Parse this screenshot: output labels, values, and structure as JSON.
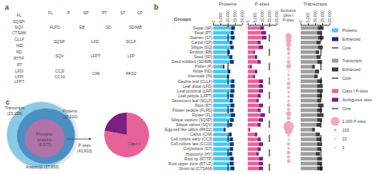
{
  "chart_data": [
    {
      "type": "diagram",
      "title": "a",
      "annotations": [
        [
          "FL",
          "SQSP/\nSQV",
          "CTSAM",
          "CLLF",
          "IND",
          "ND",
          "RTTP",
          "RT",
          "LFD/\nLFP/\nLFPT"
        ],
        [
          "FL",
          "P",
          "SP",
          "PT",
          "ST",
          "CP"
        ],
        [
          "FLPD",
          "EB",
          "SD",
          "SDIMB"
        ],
        [
          "SQSP",
          "LFD",
          "SCLF"
        ],
        [
          "SQV",
          "LFPT",
          "LFP"
        ],
        [
          "CC3/\nCC10",
          "CIM",
          "RKD2"
        ]
      ]
    },
    {
      "type": "bar",
      "orientation": "horizontal",
      "stacked": false,
      "title": "b",
      "ylabel": "Groups",
      "xlabel": "Proteins",
      "categories": [
        "Sepal (SP)",
        "Petal (PT)",
        "Stamen (ST)",
        "Carpel (CP)",
        "Silique (SQ)",
        "Embryo (EB)",
        "Seed (SD)",
        "Seed imbibed (SDIMB)",
        "Pollen (P)",
        "Node (ND)",
        "Internode (IN)",
        "Cauline leaf (CLLF)",
        "Leaf distal (LFD)",
        "Leaf proximal (LFP)",
        "Leaf petiole (LFPT)",
        "Senescent leaf (SCLF)",
        "Root (RT)",
        "Flower pedicle (FLPD)",
        "Flower (FL)",
        "Silique septum (SQSP)",
        "Silique valves (SQV)",
        "Egg-cell like callus (RKD2)",
        "Callus (CIM)",
        "Cell culture early (CC3)",
        "Cell culture late (CC10)",
        "Cotyledons (CT)",
        "Hypocotyl (HY)",
        "Root tip (RTTP)",
        "Root upper zone (RTUZ)",
        "Shoot tip (CTSAM)"
      ],
      "series": [
        {
          "name": "Proteins",
          "color": "#4CC8EE",
          "values": [
            15000,
            14200,
            14800,
            13200,
            14100,
            11500,
            13200,
            14200,
            7500,
            11800,
            11000,
            14600,
            14700,
            14600,
            14100,
            13600,
            14600,
            14100,
            15100,
            14200,
            13100,
            8500,
            12800,
            13600,
            14100,
            13700,
            13100,
            14100,
            14100,
            14600
          ]
        },
        {
          "name": "Enhanced",
          "color": "#1A2F7A",
          "values": [
            2500,
            2000,
            2500,
            1800,
            2200,
            1500,
            2000,
            2500,
            800,
            1800,
            1500,
            2200,
            2600,
            2600,
            2400,
            2000,
            2600,
            2400,
            3000,
            2400,
            2100,
            1200,
            2000,
            2200,
            2500,
            2200,
            2100,
            2600,
            2600,
            2600
          ]
        },
        {
          "name": "Core",
          "type": "line",
          "line_style": "dashed",
          "color": "#000000",
          "value": 10210
        }
      ],
      "xlim": [
        0,
        20000
      ],
      "xticks": [
        0,
        {
          "value": 5000,
          "label": "5,000"
        },
        {
          "value": 10000,
          "label": "10,000"
        },
        {
          "value": 15000,
          "label": "15,000"
        },
        {
          "value": 20000,
          "label": "20,000"
        }
      ],
      "grid": false,
      "legend": "right"
    },
    {
      "type": "bar",
      "orientation": "horizontal",
      "stacked": true,
      "xlabel": "P-sites",
      "categories": [
        "Sepal (SP)",
        "Petal (PT)",
        "Stamen (ST)",
        "Carpel (CP)",
        "Silique (SQ)",
        "Embryo (EB)",
        "Seed (SD)",
        "Seed imbibed (SDIMB)",
        "Pollen (P)",
        "Node (ND)",
        "Internode (IN)",
        "Cauline leaf (CLLF)",
        "Leaf distal (LFD)",
        "Leaf proximal (LFP)",
        "Leaf petiole (LFPT)",
        "Senescent leaf (SCLF)",
        "Root (RT)",
        "Flower pedicle (FLPD)",
        "Flower (FL)",
        "Silique septum (SQSP)",
        "Silique valves (SQV)",
        "Egg-cell like callus (RKD2)",
        "Callus (CIM)",
        "Cell culture early (CC3)",
        "Cell culture late (CC10)",
        "Cotyledons (CT)",
        "Hypocotyl (HY)",
        "Root tip (RTTP)",
        "Root upper zone (RTUZ)",
        "Shoot tip (CTSAM)"
      ],
      "series": [
        {
          "name": "Class I P-sites",
          "color": "#E8629A",
          "values": [
            8500,
            9500,
            9800,
            6800,
            7800,
            3800,
            4800,
            6800,
            1800,
            4800,
            3800,
            7800,
            7800,
            7800,
            6800,
            5800,
            7800,
            6800,
            8800,
            7800,
            6800,
            1200,
            4800,
            6800,
            7800,
            6800,
            5800,
            7800,
            7800,
            7800
          ]
        },
        {
          "name": "Ambiguous sites",
          "color": "#7B2080",
          "values": [
            2800,
            3200,
            3200,
            2200,
            2800,
            1200,
            1800,
            2200,
            600,
            1800,
            1200,
            2800,
            2800,
            2800,
            2200,
            1800,
            2800,
            2200,
            3200,
            2800,
            2200,
            400,
            1800,
            2200,
            2800,
            2200,
            1800,
            2800,
            2800,
            2800
          ]
        },
        {
          "name": "Core",
          "type": "line",
          "line_style": "dashed",
          "color": "#000000",
          "value": 15000
        }
      ],
      "xlim": [
        0,
        20000
      ],
      "xticks": [
        0,
        {
          "value": 5000,
          "label": "5,000"
        },
        {
          "value": 10000,
          "label": "10,000"
        },
        {
          "value": 15000,
          "label": "15,000"
        },
        {
          "value": 20000,
          "label": "20,000"
        }
      ],
      "grid": false,
      "legend": "right"
    },
    {
      "type": "bubble",
      "title": "Exclusive\nclass I\nP-sites",
      "categories": [
        "Sepal (SP)",
        "Petal (PT)",
        "Stamen (ST)",
        "Carpel (CP)",
        "Silique (SQ)",
        "Embryo (EB)",
        "Seed (SD)",
        "Seed imbibed (SDIMB)",
        "Pollen (P)",
        "Node (ND)",
        "Internode (IN)",
        "Cauline leaf (CLLF)",
        "Leaf distal (LFD)",
        "Leaf proximal (LFP)",
        "Leaf petiole (LFPT)",
        "Senescent leaf (SCLF)",
        "Root (RT)",
        "Flower pedicle (FLPD)",
        "Flower (FL)",
        "Silique septum (SQSP)",
        "Silique valves (SQV)",
        "Egg-cell like callus (RKD2)",
        "Callus (CIM)",
        "Cell culture early (CC3)",
        "Cell culture late (CC10)",
        "Cotyledons (CT)",
        "Hypocotyl (HY)",
        "Root tip (RTTP)",
        "Root upper zone (RTUZ)",
        "Shoot tip (CTSAM)"
      ],
      "sizes": [
        450,
        380,
        280,
        180,
        130,
        80,
        180,
        280,
        30,
        80,
        60,
        180,
        130,
        80,
        80,
        80,
        180,
        130,
        280,
        180,
        130,
        1400,
        650,
        80,
        60,
        130,
        80,
        180,
        130,
        180
      ],
      "color": "#F0A0B8",
      "size_legend": [
        {
          "value": 1000,
          "label": "1,000 P-sites"
        },
        100,
        10,
        1
      ]
    },
    {
      "type": "bar",
      "orientation": "horizontal",
      "stacked": false,
      "xlabel": "Transcripts",
      "categories": [
        "Sepal (SP)",
        "Petal (PT)",
        "Stamen (ST)",
        "Carpel (CP)",
        "Silique (SQ)",
        "Embryo (EB)",
        "Seed (SD)",
        "Seed imbibed (SDIMB)",
        "Pollen (P)",
        "Node (ND)",
        "Internode (IN)",
        "Cauline leaf (CLLF)",
        "Leaf distal (LFD)",
        "Leaf proximal (LFP)",
        "Leaf petiole (LFPT)",
        "Senescent leaf (SCLF)",
        "Root (RT)",
        "Flower pedicle (FLPD)",
        "Flower (FL)",
        "Silique septum (SQSP)",
        "Silique valves (SQV)",
        "Egg-cell like callus (RKD2)",
        "Callus (CIM)",
        "Cell culture early (CC3)",
        "Cell culture late (CC10)",
        "Cotyledons (CT)",
        "Hypocotyl (HY)",
        "Root tip (RTTP)",
        "Root upper zone (RTUZ)",
        "Shoot tip (CTSAM)"
      ],
      "series": [
        {
          "name": "Transcripts",
          "color": "#9E9E9E",
          "values": [
            15800,
            14800,
            15800,
            13800,
            15300,
            12800,
            13800,
            14800,
            9800,
            12800,
            11800,
            14800,
            15300,
            15300,
            14800,
            14300,
            15800,
            14800,
            15800,
            14800,
            13800,
            9800,
            13300,
            14300,
            14800,
            14300,
            13300,
            14800,
            14800,
            15300
          ]
        },
        {
          "name": "Enhanced",
          "color": "#3D3D3D",
          "values": [
            3800,
            3300,
            3800,
            2800,
            3300,
            2300,
            2800,
            3300,
            1800,
            2800,
            2300,
            3300,
            3800,
            3800,
            3300,
            2800,
            3800,
            3300,
            4300,
            3300,
            2800,
            1800,
            2800,
            3300,
            3300,
            2800,
            2800,
            3300,
            3300,
            3800
          ]
        },
        {
          "name": "Core",
          "type": "line",
          "line_style": "dashed",
          "color": "#000000",
          "value": 14000
        }
      ],
      "xlim": [
        0,
        20000
      ],
      "xticks": [
        0,
        {
          "value": 5000,
          "label": "5,000"
        },
        {
          "value": 10000,
          "label": "10,000"
        },
        {
          "value": 15000,
          "label": "15,000"
        },
        {
          "value": 20000,
          "label": "20,000"
        }
      ],
      "grid": false,
      "legend": "right"
    },
    {
      "type": "venn",
      "title": "c",
      "values": [
        27655,
        25158,
        18210,
        8577
      ],
      "value_labels": [
        "Araport11 (27,655)",
        "Transcripts\n(25,158)",
        "Proteins\n(18,210)",
        "Phospho-\nproteins\n(8,577)"
      ],
      "colors": [
        "#CCCCCC",
        "#29ABE2",
        "#1A5FA8",
        "#E8629A"
      ],
      "annotations": [
        "P-sites\n(43,903)"
      ]
    },
    {
      "type": "pie",
      "values": [
        0.78,
        0.22
      ],
      "categories": [
        "Class I",
        null
      ],
      "colors": [
        "#E8629A",
        "#7B2080"
      ]
    }
  ]
}
